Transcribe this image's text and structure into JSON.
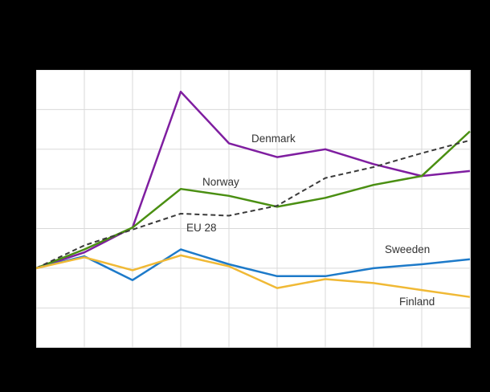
{
  "page": {
    "background": "#000000",
    "title_visible": false,
    "axis_tick_labels_visible": false
  },
  "plot": {
    "background": "#ffffff",
    "grid_color": "#d9d9d9",
    "columns": 9,
    "rows": 7
  },
  "chart_data": {
    "type": "line",
    "x": [
      1,
      2,
      3,
      4,
      5,
      6,
      7,
      8,
      9,
      10
    ],
    "x_tick_labels": [
      "",
      "",
      "",
      "",
      "",
      "",
      "",
      "",
      "",
      ""
    ],
    "y_axis": {
      "min": 60,
      "max": 200,
      "step": 20,
      "labels_visible": false
    },
    "grid": true,
    "legend_position": "inline-labels",
    "note": "index-style series, all start at 100; values estimated from gridlines",
    "series": [
      {
        "name": "Denmark",
        "color": "#7f1ea0",
        "style": "solid",
        "values": [
          100,
          108,
          120.5,
          189,
          163,
          156,
          160,
          152.5,
          146.5,
          149
        ]
      },
      {
        "name": "Norway",
        "color": "#4a8f12",
        "style": "solid",
        "values": [
          100,
          109.5,
          120.5,
          140,
          136.5,
          131,
          135.5,
          142,
          146.5,
          169
        ]
      },
      {
        "name": "EU 28",
        "color": "#3a3a3a",
        "style": "dashed",
        "values": [
          100,
          111.5,
          119.5,
          127.5,
          126.5,
          131.5,
          145.5,
          151,
          158,
          164.5
        ]
      },
      {
        "name": "Sweeden",
        "color": "#1d7ac9",
        "style": "solid",
        "values": [
          100,
          106,
          94,
          109.5,
          102,
          96,
          96,
          100,
          102,
          104.5
        ]
      },
      {
        "name": "Finland",
        "color": "#f0b935",
        "style": "solid",
        "values": [
          100,
          105.5,
          99,
          106.5,
          101,
          90,
          94.5,
          92.5,
          89,
          85.5
        ]
      }
    ]
  },
  "labels": {
    "denmark": {
      "text": "Denmark"
    },
    "norway": {
      "text": "Norway"
    },
    "eu28": {
      "text": "EU 28"
    },
    "sweeden": {
      "text": "Sweeden"
    },
    "finland": {
      "text": "Finland"
    }
  }
}
